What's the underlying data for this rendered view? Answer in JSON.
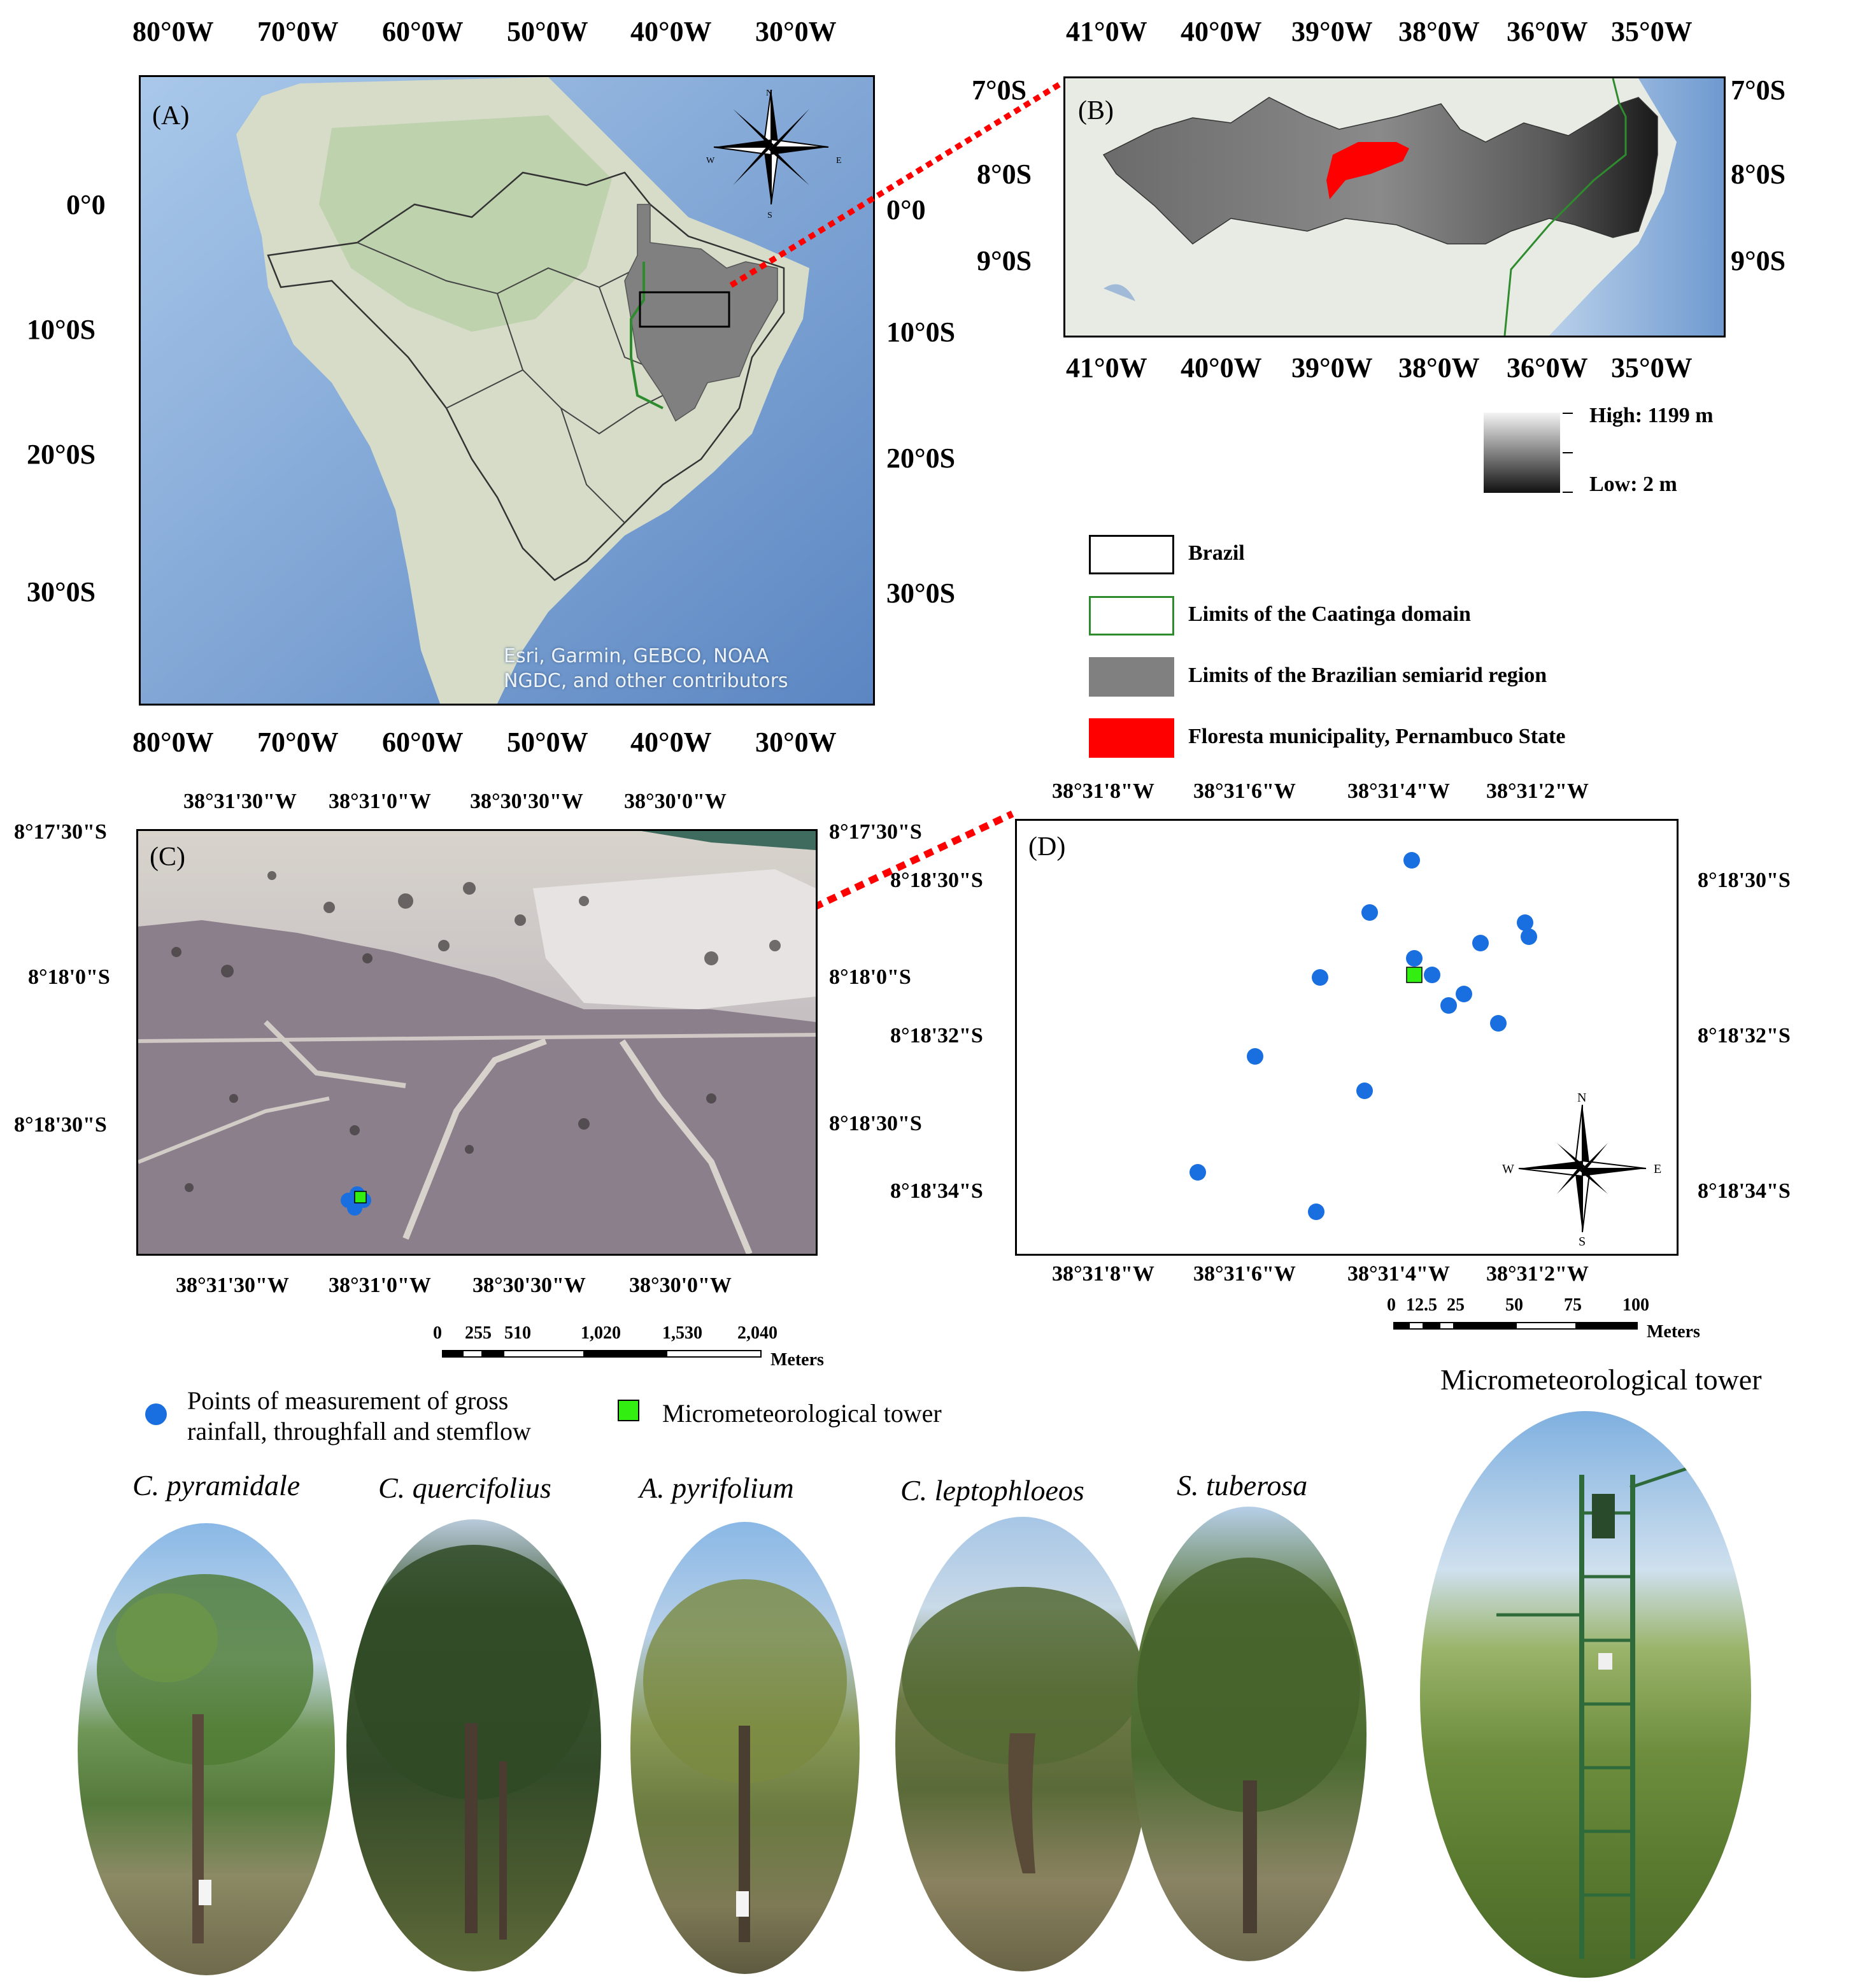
{
  "panel_a": {
    "letter": "(A)",
    "top_ticks": [
      "80°0W",
      "70°0W",
      "60°0W",
      "50°0W",
      "40°0W",
      "30°0W"
    ],
    "bottom_ticks": [
      "80°0W",
      "70°0W",
      "60°0W",
      "50°0W",
      "40°0W",
      "30°0W"
    ],
    "left_ticks": [
      "0°0",
      "10°0S",
      "20°0S",
      "30°0S"
    ],
    "right_ticks": [
      "0°0",
      "10°0S",
      "20°0S",
      "30°0S"
    ],
    "credit_line1": "Esri, Garmin, GEBCO, NOAA",
    "credit_line2": "NGDC, and other contributors",
    "compass": {
      "n": "N",
      "s": "S",
      "e": "E",
      "w": "W"
    }
  },
  "panel_b": {
    "letter": "(B)",
    "top_ticks": [
      "41°0W",
      "40°0W",
      "39°0W",
      "38°0W",
      "36°0W",
      "35°0W"
    ],
    "bottom_ticks": [
      "41°0W",
      "40°0W",
      "39°0W",
      "38°0W",
      "36°0W",
      "35°0W"
    ],
    "left_ticks": [
      "7°0S",
      "8°0S",
      "9°0S"
    ],
    "right_ticks": [
      "7°0S",
      "8°0S",
      "9°0S"
    ],
    "elevation_high": "High: 1199 m",
    "elevation_low": "Low: 2 m"
  },
  "legend": {
    "items": [
      {
        "label": "Brazil",
        "fill": "#ffffff",
        "border": "#000000"
      },
      {
        "label": "Limits of the Caatinga domain",
        "fill": "#ffffff",
        "border": "#2e8b2e"
      },
      {
        "label": "Limits of the Brazilian semiarid region",
        "fill": "#808080",
        "border": "#808080"
      },
      {
        "label": "Floresta municipality, Pernambuco State",
        "fill": "#ff0000",
        "border": "#ff0000"
      }
    ]
  },
  "panel_c": {
    "letter": "(C)",
    "top_ticks": [
      "38°31'30\"W",
      "38°31'0\"W",
      "38°30'30\"W",
      "38°30'0\"W"
    ],
    "bottom_ticks": [
      "38°31'30\"W",
      "38°31'0\"W",
      "38°30'30\"W",
      "38°30'0\"W"
    ],
    "left_ticks": [
      "8°17'30\"S",
      "8°18'0\"S",
      "8°18'30\"S"
    ],
    "right_ticks": [
      "8°17'30\"S",
      "8°18'0\"S",
      "8°18'30\"S"
    ],
    "scale_labels": [
      "0",
      "255",
      "510",
      "1,020",
      "1,530",
      "2,040"
    ],
    "scale_unit": "Meters"
  },
  "panel_d": {
    "letter": "(D)",
    "top_ticks": [
      "38°31'8\"W",
      "38°31'6\"W",
      "38°31'4\"W",
      "38°31'2\"W"
    ],
    "bottom_ticks": [
      "38°31'8\"W",
      "38°31'6\"W",
      "38°31'4\"W",
      "38°31'2\"W"
    ],
    "left_ticks": [
      "8°18'30\"S",
      "8°18'32\"S",
      "8°18'34\"S"
    ],
    "right_ticks": [
      "8°18'30\"S",
      "8°18'32\"S",
      "8°18'34\"S"
    ],
    "scale_labels": [
      "0",
      "12.5",
      "25",
      "50",
      "75",
      "100"
    ],
    "scale_unit": "Meters",
    "compass": {
      "n": "N",
      "s": "S",
      "e": "E",
      "w": "W"
    },
    "point_color": "#1a6fe0",
    "tower_color": "#33ee11"
  },
  "symbol_legend": {
    "points_line1": "Points of measurement of gross",
    "points_line2": "rainfall, throughfall and stemflow",
    "tower": "Micrometeorological tower"
  },
  "photos": {
    "species": [
      "C. pyramidale",
      "C. quercifolius",
      "A. pyrifolium",
      "C. leptophloeos",
      "S. tuberosa"
    ],
    "tower_title": "Micrometeorological tower"
  }
}
